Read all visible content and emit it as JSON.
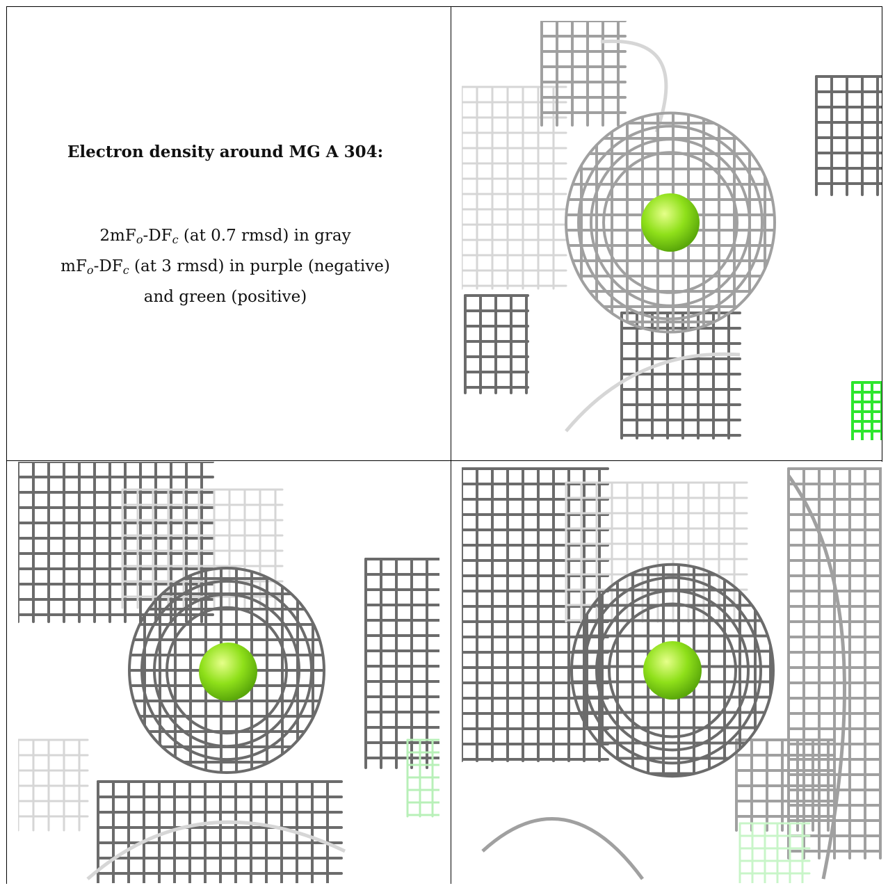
{
  "caption": {
    "title": "Electron density around MG A 304:",
    "line1_prefix": "2mF",
    "line1_sub_o": "o",
    "line1_mid": "-DF",
    "line1_sub_c": "c",
    "line1_suffix": " (at 0.7 rmsd) in gray",
    "line2_prefix": "mF",
    "line2_sub_o": "o",
    "line2_mid": "-DF",
    "line2_sub_c": "c",
    "line2_suffix": " (at 3 rmsd) in purple (negative)",
    "line3": "and green (positive)"
  },
  "colors": {
    "mesh_dark": "#6b6b6b",
    "mesh_mid": "#a0a0a0",
    "mesh_light": "#d6d6d6",
    "mesh_positive": "#2ee62e",
    "atom": "#8fe01a",
    "atom_highlight": "#e6ff8a"
  },
  "panels": [
    {
      "name": "view-top-right",
      "atom": "MG"
    },
    {
      "name": "view-bottom-left",
      "atom": "MG"
    },
    {
      "name": "view-bottom-right",
      "atom": "MG"
    }
  ]
}
